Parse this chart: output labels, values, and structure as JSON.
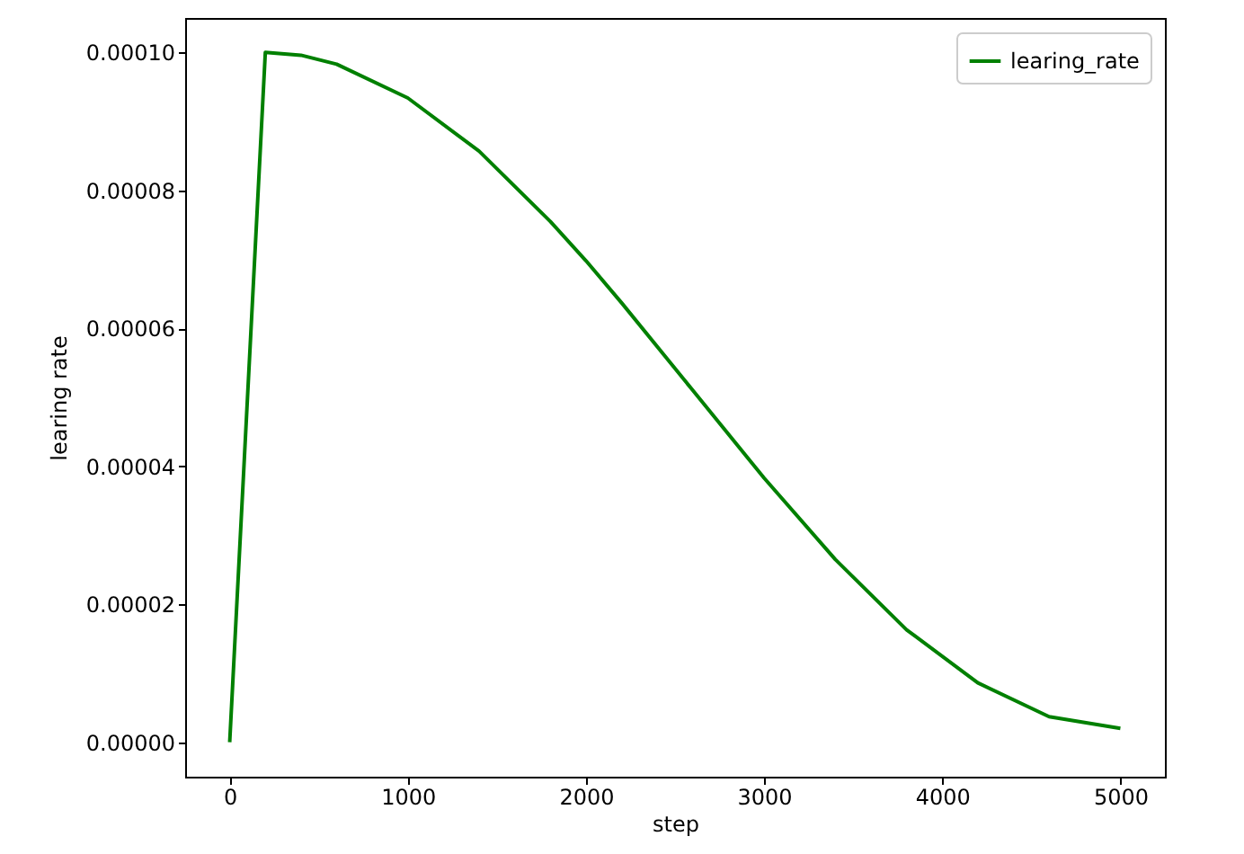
{
  "chart_data": {
    "type": "line",
    "xlabel": "step",
    "ylabel": "learing rate",
    "x": [
      0,
      200,
      400,
      600,
      1000,
      1400,
      1800,
      2000,
      2200,
      2600,
      3000,
      3400,
      3800,
      4200,
      4600,
      5000
    ],
    "series": [
      {
        "name": "learing_rate",
        "color": "#008000",
        "values": [
          0,
          0.0001,
          9.96e-05,
          9.83e-05,
          9.34e-05,
          8.57e-05,
          7.55e-05,
          6.98e-05,
          6.37e-05,
          5.1e-05,
          3.83e-05,
          2.65e-05,
          1.63e-05,
          8.6e-06,
          3.7e-06,
          2e-06
        ]
      }
    ],
    "xlim": [
      -250,
      5250
    ],
    "xticks": [
      0,
      1000,
      2000,
      3000,
      4000,
      5000
    ],
    "ylim": [
      -5e-06,
      0.000105
    ],
    "yticks": [
      {
        "value": 0,
        "label": "0.00000"
      },
      {
        "value": 2e-05,
        "label": "0.00002"
      },
      {
        "value": 4e-05,
        "label": "0.00004"
      },
      {
        "value": 6e-05,
        "label": "0.00006"
      },
      {
        "value": 8e-05,
        "label": "0.00008"
      },
      {
        "value": 0.0001,
        "label": "0.00010"
      }
    ],
    "legend": "top right",
    "grid": false,
    "line_style": "solid",
    "marker": "none"
  }
}
